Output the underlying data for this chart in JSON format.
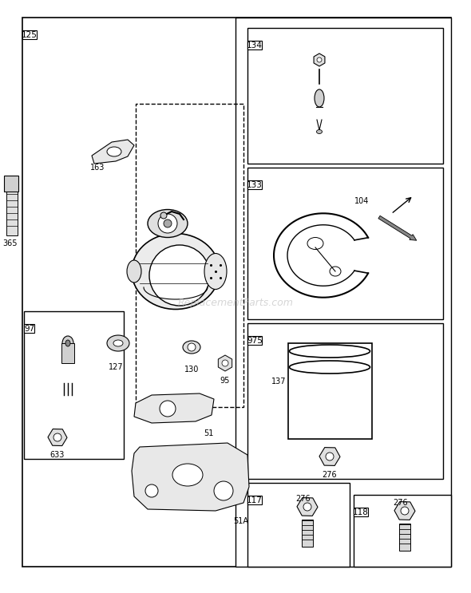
{
  "bg_color": "#ffffff",
  "fig_w": 5.9,
  "fig_h": 7.43,
  "dpi": 100
}
